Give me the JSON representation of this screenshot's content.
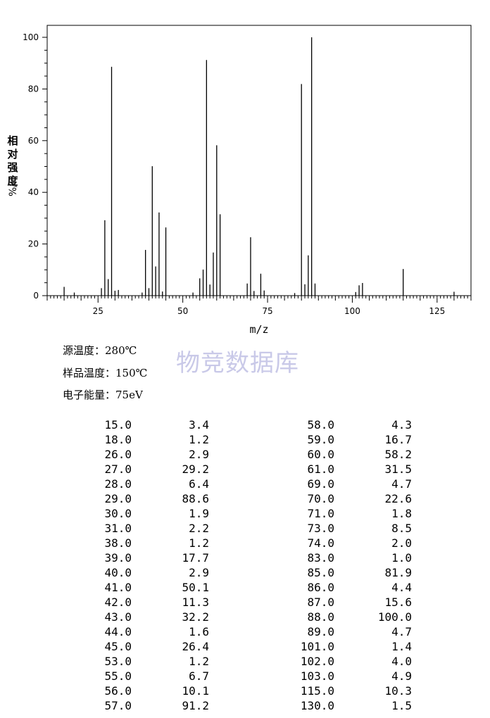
{
  "chart_data": {
    "type": "bar",
    "xlabel": "m/z",
    "ylabel": "相对强度/%",
    "xlim": [
      10,
      135
    ],
    "ylim": [
      0,
      100
    ],
    "x_ticks": [
      25,
      50,
      75,
      100,
      125
    ],
    "y_ticks": [
      0,
      20,
      40,
      60,
      80,
      100
    ],
    "grid": false,
    "peaks": [
      {
        "mz": 15.0,
        "intensity": 3.4
      },
      {
        "mz": 18.0,
        "intensity": 1.2
      },
      {
        "mz": 26.0,
        "intensity": 2.9
      },
      {
        "mz": 27.0,
        "intensity": 29.2
      },
      {
        "mz": 28.0,
        "intensity": 6.4
      },
      {
        "mz": 29.0,
        "intensity": 88.6
      },
      {
        "mz": 30.0,
        "intensity": 1.9
      },
      {
        "mz": 31.0,
        "intensity": 2.2
      },
      {
        "mz": 38.0,
        "intensity": 1.2
      },
      {
        "mz": 39.0,
        "intensity": 17.7
      },
      {
        "mz": 40.0,
        "intensity": 2.9
      },
      {
        "mz": 41.0,
        "intensity": 50.1
      },
      {
        "mz": 42.0,
        "intensity": 11.3
      },
      {
        "mz": 43.0,
        "intensity": 32.2
      },
      {
        "mz": 44.0,
        "intensity": 1.6
      },
      {
        "mz": 45.0,
        "intensity": 26.4
      },
      {
        "mz": 53.0,
        "intensity": 1.2
      },
      {
        "mz": 55.0,
        "intensity": 6.7
      },
      {
        "mz": 56.0,
        "intensity": 10.1
      },
      {
        "mz": 57.0,
        "intensity": 91.2
      },
      {
        "mz": 58.0,
        "intensity": 4.3
      },
      {
        "mz": 59.0,
        "intensity": 16.7
      },
      {
        "mz": 60.0,
        "intensity": 58.2
      },
      {
        "mz": 61.0,
        "intensity": 31.5
      },
      {
        "mz": 69.0,
        "intensity": 4.7
      },
      {
        "mz": 70.0,
        "intensity": 22.6
      },
      {
        "mz": 71.0,
        "intensity": 1.8
      },
      {
        "mz": 73.0,
        "intensity": 8.5
      },
      {
        "mz": 74.0,
        "intensity": 2.0
      },
      {
        "mz": 83.0,
        "intensity": 1.0
      },
      {
        "mz": 85.0,
        "intensity": 81.9
      },
      {
        "mz": 86.0,
        "intensity": 4.4
      },
      {
        "mz": 87.0,
        "intensity": 15.6
      },
      {
        "mz": 88.0,
        "intensity": 100.0
      },
      {
        "mz": 89.0,
        "intensity": 4.7
      },
      {
        "mz": 101.0,
        "intensity": 1.4
      },
      {
        "mz": 102.0,
        "intensity": 4.0
      },
      {
        "mz": 103.0,
        "intensity": 4.9
      },
      {
        "mz": 115.0,
        "intensity": 10.3
      },
      {
        "mz": 130.0,
        "intensity": 1.5
      }
    ]
  },
  "conditions": {
    "source_temp": "源温度：280℃",
    "sample_temp": "样品温度：150℃",
    "electron_energy": "电子能量：75eV"
  },
  "watermark": "物竞数据库",
  "table": {
    "left": [
      [
        "15.0",
        "3.4"
      ],
      [
        "18.0",
        "1.2"
      ],
      [
        "26.0",
        "2.9"
      ],
      [
        "27.0",
        "29.2"
      ],
      [
        "28.0",
        "6.4"
      ],
      [
        "29.0",
        "88.6"
      ],
      [
        "30.0",
        "1.9"
      ],
      [
        "31.0",
        "2.2"
      ],
      [
        "38.0",
        "1.2"
      ],
      [
        "39.0",
        "17.7"
      ],
      [
        "40.0",
        "2.9"
      ],
      [
        "41.0",
        "50.1"
      ],
      [
        "42.0",
        "11.3"
      ],
      [
        "43.0",
        "32.2"
      ],
      [
        "44.0",
        "1.6"
      ],
      [
        "45.0",
        "26.4"
      ],
      [
        "53.0",
        "1.2"
      ],
      [
        "55.0",
        "6.7"
      ],
      [
        "56.0",
        "10.1"
      ],
      [
        "57.0",
        "91.2"
      ]
    ],
    "right": [
      [
        "58.0",
        "4.3"
      ],
      [
        "59.0",
        "16.7"
      ],
      [
        "60.0",
        "58.2"
      ],
      [
        "61.0",
        "31.5"
      ],
      [
        "69.0",
        "4.7"
      ],
      [
        "70.0",
        "22.6"
      ],
      [
        "71.0",
        "1.8"
      ],
      [
        "73.0",
        "8.5"
      ],
      [
        "74.0",
        "2.0"
      ],
      [
        "83.0",
        "1.0"
      ],
      [
        "85.0",
        "81.9"
      ],
      [
        "86.0",
        "4.4"
      ],
      [
        "87.0",
        "15.6"
      ],
      [
        "88.0",
        "100.0"
      ],
      [
        "89.0",
        "4.7"
      ],
      [
        "101.0",
        "1.4"
      ],
      [
        "102.0",
        "4.0"
      ],
      [
        "103.0",
        "4.9"
      ],
      [
        "115.0",
        "10.3"
      ],
      [
        "130.0",
        "1.5"
      ]
    ]
  }
}
